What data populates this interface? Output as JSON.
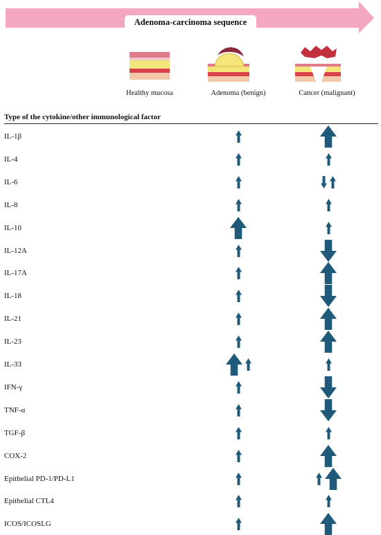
{
  "header": {
    "sequence_title": "Adenoma-carcinoma sequence",
    "column_header": "Type of the cytokine/other immunological factor"
  },
  "stages": [
    {
      "label": "Healthy mucosa"
    },
    {
      "label": "Adenoma (benign)"
    },
    {
      "label": "Cancer (malignant)"
    }
  ],
  "colors": {
    "banner": "#f4a7c3",
    "arrow": "#1f5a7a"
  },
  "legend_note": "arrow direction: up = increased, down = decreased; size: large = strong change, small = slight change",
  "factors": [
    {
      "name": "IL-1β",
      "adenoma": [
        "up-small"
      ],
      "cancer": [
        "up-large"
      ]
    },
    {
      "name": "IL-4",
      "adenoma": [
        "up-small"
      ],
      "cancer": [
        "up-small"
      ]
    },
    {
      "name": "IL-6",
      "adenoma": [
        "up-small"
      ],
      "cancer": [
        "down-small",
        "up-small"
      ]
    },
    {
      "name": "IL-8",
      "adenoma": [
        "up-small"
      ],
      "cancer": [
        "up-small"
      ]
    },
    {
      "name": "IL-10",
      "adenoma": [
        "up-large"
      ],
      "cancer": [
        "up-small"
      ]
    },
    {
      "name": "IL-12A",
      "adenoma": [
        "up-small"
      ],
      "cancer": [
        "down-large"
      ]
    },
    {
      "name": "IL-17A",
      "adenoma": [
        "up-small"
      ],
      "cancer": [
        "up-large"
      ]
    },
    {
      "name": "IL-18",
      "adenoma": [
        "up-small"
      ],
      "cancer": [
        "down-large"
      ]
    },
    {
      "name": "IL-21",
      "adenoma": [
        "up-small"
      ],
      "cancer": [
        "up-large"
      ]
    },
    {
      "name": "IL-23",
      "adenoma": [
        "up-small"
      ],
      "cancer": [
        "up-large"
      ]
    },
    {
      "name": "IL-33",
      "adenoma": [
        "up-large",
        "up-small"
      ],
      "cancer": [
        "up-small"
      ]
    },
    {
      "name": "IFN-γ",
      "adenoma": [
        "up-small"
      ],
      "cancer": [
        "down-large"
      ]
    },
    {
      "name": "TNF-α",
      "adenoma": [
        "up-small"
      ],
      "cancer": [
        "down-large"
      ]
    },
    {
      "name": "TGF-β",
      "adenoma": [
        "up-small"
      ],
      "cancer": [
        "up-small"
      ]
    },
    {
      "name": "COX-2",
      "adenoma": [
        "up-small"
      ],
      "cancer": [
        "up-large"
      ]
    },
    {
      "name": "Epithelial PD-1/PD-L1",
      "adenoma": [
        "up-small"
      ],
      "cancer": [
        "up-small",
        "up-large"
      ]
    },
    {
      "name": "Epithelial CTL4",
      "adenoma": [
        "up-small"
      ],
      "cancer": [
        "up-small"
      ]
    },
    {
      "name": "ICOS/ICOSLG",
      "adenoma": [
        "up-small"
      ],
      "cancer": [
        "up-large"
      ]
    }
  ]
}
